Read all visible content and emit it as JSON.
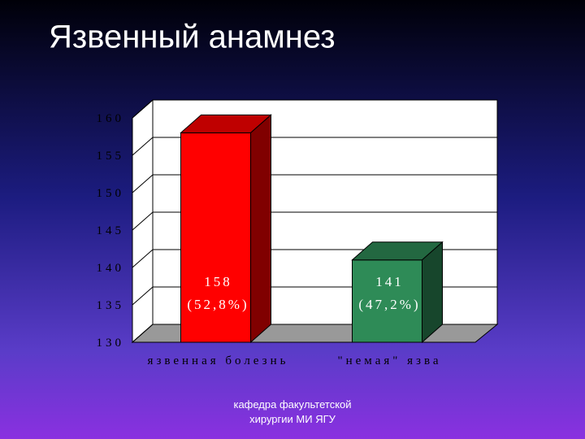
{
  "chart_data": {
    "type": "bar3d",
    "title": "Язвенный анамнез",
    "categories": [
      "язвенная болезнь",
      "\"немая\" язва"
    ],
    "values": [
      158,
      141
    ],
    "value_labels": [
      "158",
      "141"
    ],
    "share_labels": [
      "(52,8%)",
      "(47,2%)"
    ],
    "colors": [
      "#ff0000",
      "#2e8b57"
    ],
    "ylim": [
      130,
      160
    ],
    "yticks": [
      130,
      135,
      140,
      145,
      150,
      155,
      160
    ],
    "grid": true,
    "footer": [
      "кафедра факультетской",
      "хирургии МИ ЯГУ"
    ]
  }
}
